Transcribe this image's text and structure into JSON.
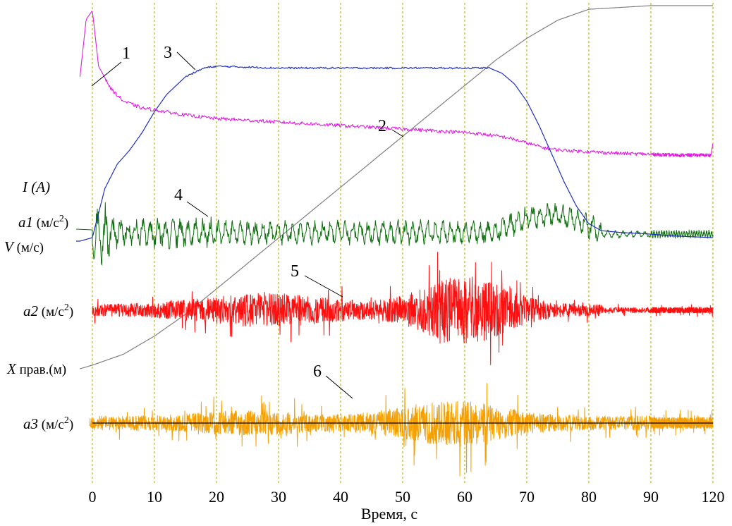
{
  "chart_data": {
    "type": "line",
    "xlabel": "Время, с",
    "x_ticks": [
      "0",
      "10",
      "20",
      "30",
      "40",
      "50",
      "60",
      "70",
      "80",
      "90",
      "120"
    ],
    "x_tick_values": [
      0,
      10,
      20,
      30,
      40,
      50,
      60,
      70,
      80,
      90,
      120
    ],
    "grid": "vertical dashed lines at each x tick",
    "y_labels": [
      {
        "id": "I",
        "main": "I (A)",
        "color": "#ff00ff"
      },
      {
        "id": "a1",
        "main": "a1",
        "unit": "(м/с",
        "sup": "2",
        "close": ")",
        "color": "#008000"
      },
      {
        "id": "V",
        "main": "V",
        "unit": "(м/с)",
        "color": "#0000c0"
      },
      {
        "id": "a2",
        "main": "a2",
        "unit": "(м/с",
        "sup": "2",
        "close": ")",
        "color": "#ff0000"
      },
      {
        "id": "X",
        "main": "X",
        "unit": " прав.(м)",
        "color": "#808080"
      },
      {
        "id": "a3",
        "main": "a3",
        "unit": "(м/с",
        "sup": "2",
        "close": ")",
        "color": "#ffa500"
      }
    ],
    "annotations": [
      "1",
      "2",
      "3",
      "4",
      "5",
      "6"
    ],
    "series": [
      {
        "name": "1",
        "label": "I (A)",
        "color": "#e020e0",
        "x": [
          -2,
          -1,
          0,
          1,
          3,
          5,
          8,
          10,
          15,
          20,
          25,
          30,
          35,
          40,
          45,
          50,
          55,
          60,
          63,
          67,
          70,
          73,
          75,
          80,
          85,
          90,
          100,
          110,
          119,
          120
        ],
        "y": [
          0.62,
          0.95,
          1.0,
          0.68,
          0.55,
          0.48,
          0.44,
          0.43,
          0.4,
          0.38,
          0.37,
          0.36,
          0.35,
          0.34,
          0.33,
          0.32,
          0.31,
          0.3,
          0.29,
          0.27,
          0.24,
          0.21,
          0.2,
          0.19,
          0.18,
          0.175,
          0.17,
          0.17,
          0.17,
          0.24
        ]
      },
      {
        "name": "2",
        "label": "X прав.(м)",
        "color": "#808080",
        "x": [
          -2,
          0,
          5,
          10,
          15,
          20,
          30,
          40,
          50,
          60,
          65,
          70,
          75,
          80,
          90,
          100,
          120
        ],
        "y": [
          0.0,
          0.01,
          0.04,
          0.09,
          0.15,
          0.22,
          0.36,
          0.5,
          0.64,
          0.78,
          0.85,
          0.91,
          0.96,
          0.99,
          1.0,
          1.0,
          1.0
        ]
      },
      {
        "name": "3",
        "label": "V(м/с)",
        "color": "#2030c0",
        "x": [
          -2,
          0,
          2,
          4,
          6,
          8,
          10,
          12,
          15,
          18,
          20,
          30,
          40,
          50,
          60,
          64,
          66,
          68,
          70,
          72,
          74,
          76,
          78,
          80,
          82,
          85,
          90,
          100,
          120
        ],
        "y": [
          0.0,
          0.02,
          0.3,
          0.44,
          0.52,
          0.62,
          0.74,
          0.84,
          0.94,
          0.99,
          1.0,
          0.99,
          0.99,
          0.99,
          0.99,
          0.99,
          0.96,
          0.9,
          0.8,
          0.66,
          0.5,
          0.34,
          0.2,
          0.1,
          0.06,
          0.05,
          0.04,
          0.03,
          0.02
        ]
      },
      {
        "name": "4",
        "label": "a1 (м/с2)",
        "color": "#107010",
        "type": "oscillation"
      },
      {
        "name": "5",
        "label": "a2 (м/с2)",
        "color": "#ff1010",
        "type": "oscillation"
      },
      {
        "name": "6",
        "label": "a3 (м/с2)",
        "color": "#f5a000",
        "type": "oscillation"
      }
    ]
  }
}
